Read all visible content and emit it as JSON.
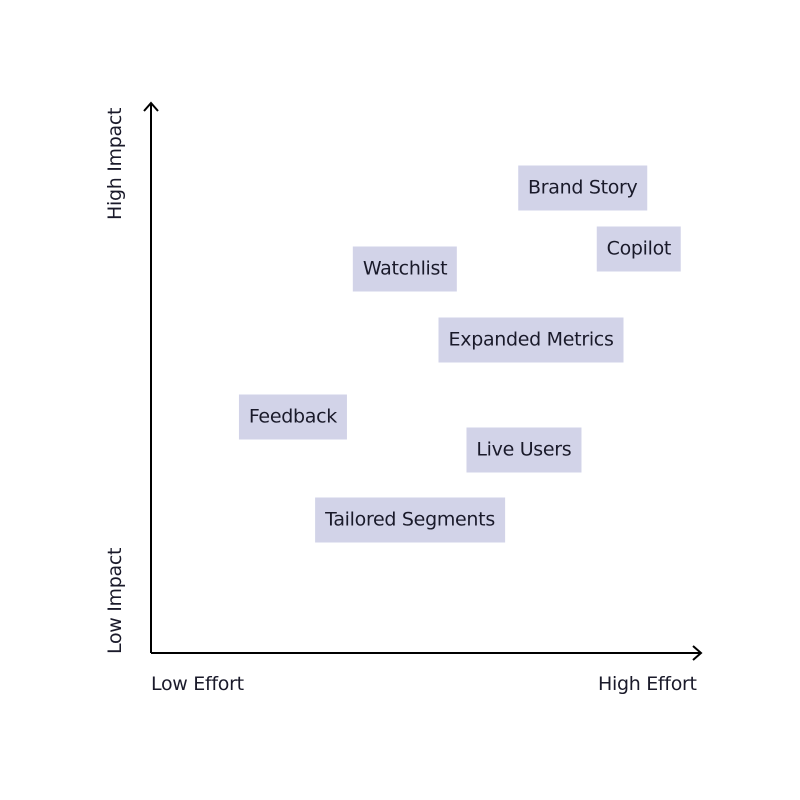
{
  "chart_data": {
    "type": "scatter",
    "title": "",
    "xlabel_low": "Low Effort",
    "xlabel_high": "High Effort",
    "ylabel_high": "High Impact",
    "ylabel_low": "Low Impact",
    "xlim": [
      0,
      100
    ],
    "ylim": [
      0,
      100
    ],
    "grid": false,
    "box_color": "#d2d3e8",
    "axis_color": "#000000",
    "points": [
      {
        "label": "Brand Story",
        "x": 78.5,
        "y": 84.5
      },
      {
        "label": "Copilot",
        "x": 88.7,
        "y": 73.5
      },
      {
        "label": "Watchlist",
        "x": 46.2,
        "y": 69.8
      },
      {
        "label": "Expanded Metrics",
        "x": 69.1,
        "y": 56.9
      },
      {
        "label": "Feedback",
        "x": 25.8,
        "y": 42.9
      },
      {
        "label": "Live Users",
        "x": 67.8,
        "y": 36.9
      },
      {
        "label": "Tailored Segments",
        "x": 47.1,
        "y": 24.2
      }
    ]
  }
}
